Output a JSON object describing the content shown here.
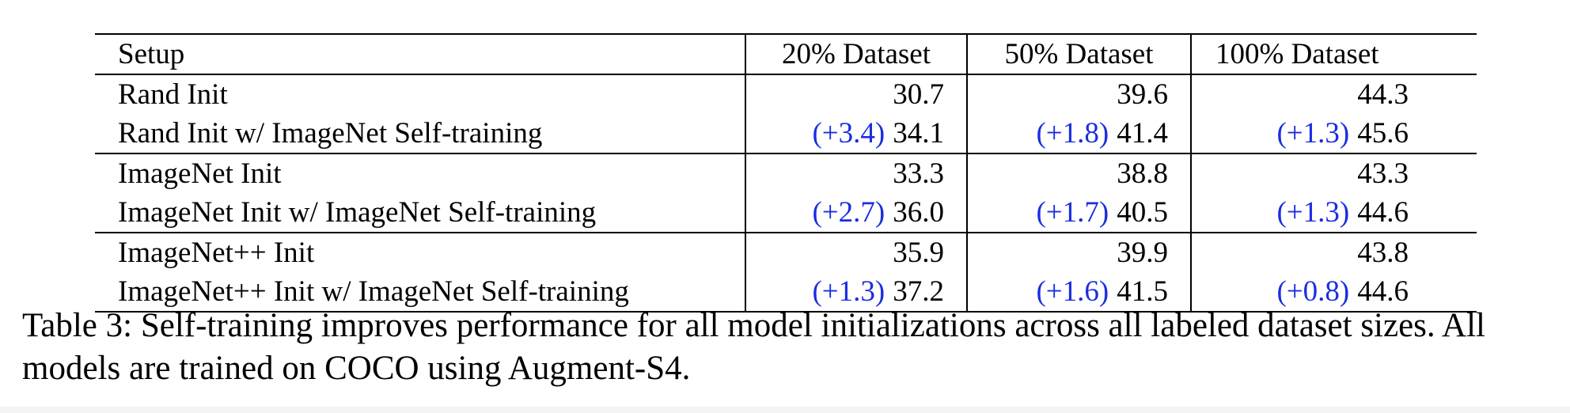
{
  "table": {
    "headers": [
      "Setup",
      "20% Dataset",
      "50% Dataset",
      "100% Dataset"
    ],
    "groups": [
      {
        "rows": [
          {
            "setup": "Rand Init",
            "cells": [
              {
                "delta": "",
                "value": "30.7"
              },
              {
                "delta": "",
                "value": "39.6"
              },
              {
                "delta": "",
                "value": "44.3"
              }
            ]
          },
          {
            "setup": "Rand Init w/ ImageNet Self-training",
            "cells": [
              {
                "delta": "(+3.4)",
                "value": "34.1"
              },
              {
                "delta": "(+1.8)",
                "value": "41.4"
              },
              {
                "delta": "(+1.3)",
                "value": "45.6"
              }
            ]
          }
        ]
      },
      {
        "rows": [
          {
            "setup": "ImageNet Init",
            "cells": [
              {
                "delta": "",
                "value": "33.3"
              },
              {
                "delta": "",
                "value": "38.8"
              },
              {
                "delta": "",
                "value": "43.3"
              }
            ]
          },
          {
            "setup": "ImageNet Init w/ ImageNet Self-training",
            "cells": [
              {
                "delta": "(+2.7)",
                "value": "36.0"
              },
              {
                "delta": "(+1.7)",
                "value": "40.5"
              },
              {
                "delta": "(+1.3)",
                "value": "44.6"
              }
            ]
          }
        ]
      },
      {
        "rows": [
          {
            "setup": "ImageNet++ Init",
            "cells": [
              {
                "delta": "",
                "value": "35.9"
              },
              {
                "delta": "",
                "value": "39.9"
              },
              {
                "delta": "",
                "value": "43.8"
              }
            ]
          },
          {
            "setup": "ImageNet++ Init w/ ImageNet Self-training",
            "cells": [
              {
                "delta": "(+1.3)",
                "value": "37.2"
              },
              {
                "delta": "(+1.6)",
                "value": "41.5"
              },
              {
                "delta": "(+0.8)",
                "value": "44.6"
              }
            ]
          }
        ]
      }
    ],
    "delta_color": "#1a2ee0"
  },
  "caption": {
    "text": "Table 3: Self-training improves performance for all model initializations across all labeled dataset sizes. All models are trained on COCO using Augment-S4."
  }
}
